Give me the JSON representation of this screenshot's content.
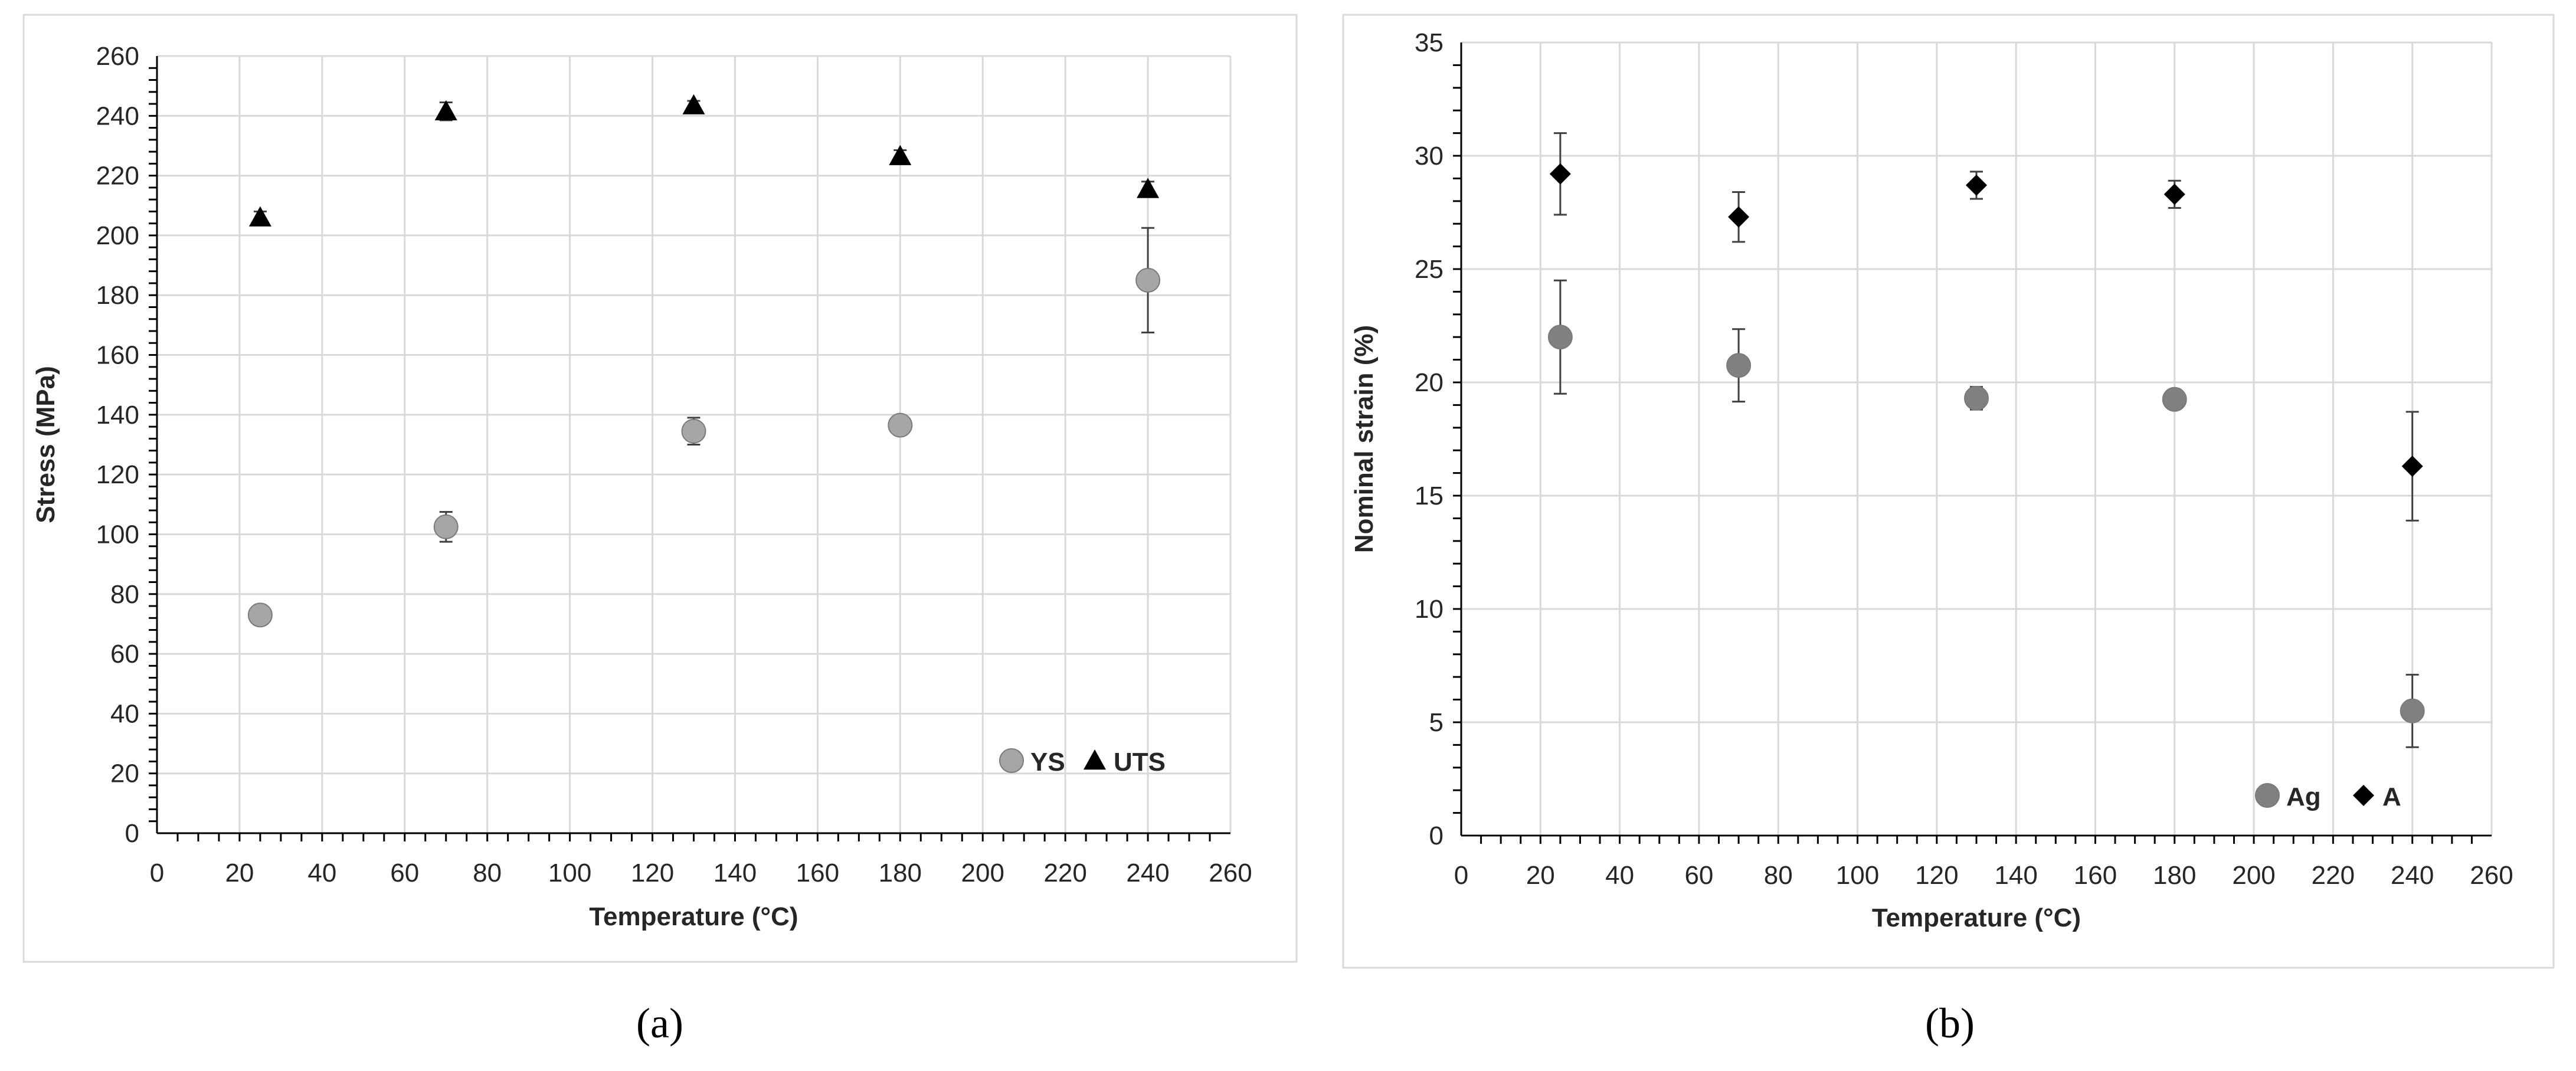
{
  "chart_data": [
    {
      "type": "scatter",
      "caption": "(a)",
      "xlabel": "Temperature (°C)",
      "ylabel": "Stress (MPa)",
      "xlim": [
        0,
        260
      ],
      "ylim": [
        0,
        260
      ],
      "xticks": [
        "0",
        "20",
        "40",
        "60",
        "80",
        "100",
        "120",
        "140",
        "160",
        "180",
        "200",
        "220",
        "240",
        "260"
      ],
      "yticks": [
        "0",
        "20",
        "40",
        "60",
        "80",
        "100",
        "120",
        "140",
        "160",
        "180",
        "200",
        "220",
        "240",
        "260"
      ],
      "grid": true,
      "legend_position": "bottom-right",
      "series": [
        {
          "name": "YS",
          "marker": "circle",
          "color": "#a6a6a6",
          "x": [
            25,
            70,
            130,
            180,
            240
          ],
          "y": [
            73,
            102.5,
            134.5,
            136.5,
            185
          ],
          "err": [
            2.5,
            5,
            4.5,
            1,
            17.5
          ]
        },
        {
          "name": "UTS",
          "marker": "triangle",
          "color": "#000000",
          "x": [
            25,
            70,
            130,
            180,
            240
          ],
          "y": [
            206,
            241.5,
            243.5,
            226.5,
            215.5
          ],
          "err": [
            2,
            3,
            1.5,
            2,
            2.5
          ]
        }
      ]
    },
    {
      "type": "scatter",
      "caption": "(b)",
      "xlabel": "Temperature (°C)",
      "ylabel": "Nominal strain (%)",
      "xlim": [
        0,
        260
      ],
      "ylim": [
        0,
        35
      ],
      "xticks": [
        "0",
        "20",
        "40",
        "60",
        "80",
        "100",
        "120",
        "140",
        "160",
        "180",
        "200",
        "220",
        "240",
        "260"
      ],
      "yticks": [
        "0",
        "5",
        "10",
        "15",
        "20",
        "25",
        "30",
        "35"
      ],
      "grid": true,
      "legend_position": "bottom-right",
      "series": [
        {
          "name": "Ag",
          "marker": "circle",
          "color": "#808080",
          "x": [
            25,
            70,
            130,
            180,
            240
          ],
          "y": [
            22,
            20.75,
            19.3,
            19.25,
            5.5
          ],
          "err": [
            2.5,
            1.6,
            0.5,
            0.3,
            1.6
          ]
        },
        {
          "name": "A",
          "marker": "diamond",
          "color": "#000000",
          "x": [
            25,
            70,
            130,
            180,
            240
          ],
          "y": [
            29.2,
            27.3,
            28.7,
            28.3,
            16.3
          ],
          "err": [
            1.8,
            1.1,
            0.6,
            0.6,
            2.4
          ]
        }
      ]
    }
  ]
}
